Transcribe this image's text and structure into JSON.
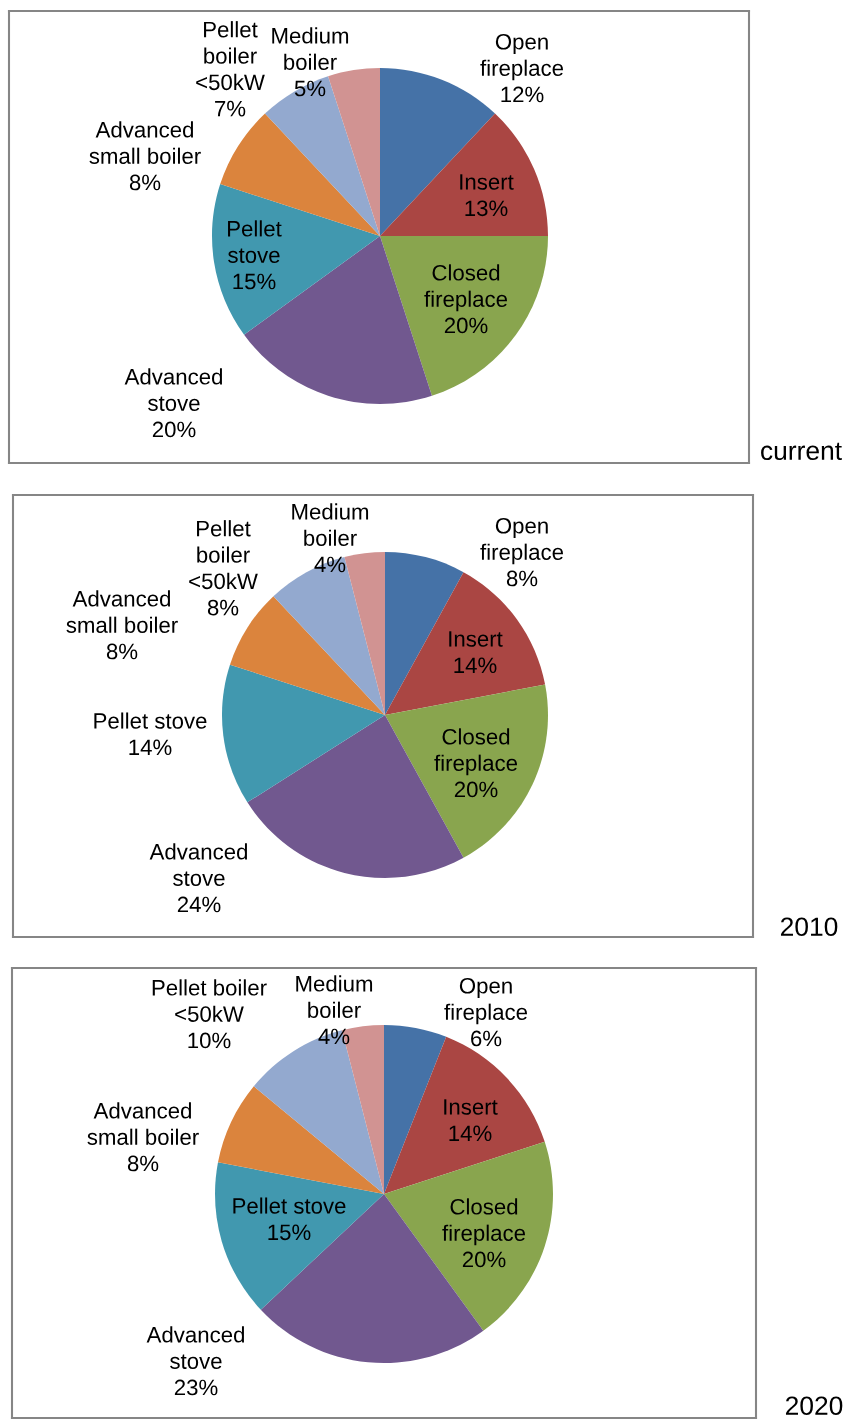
{
  "chart_data": [
    {
      "type": "pie",
      "title": "current",
      "categories": [
        "Open\nfireplace",
        "Insert",
        "Closed\nfireplace",
        "Advanced\nstove",
        "Pellet\nstove",
        "Advanced\nsmall boiler",
        "Pellet\nboiler\n<50kW",
        "Medium\nboiler"
      ],
      "values": [
        12,
        13,
        20,
        20,
        15,
        8,
        7,
        5
      ],
      "value_labels": [
        "12%",
        "13%",
        "20%",
        "20%",
        "15%",
        "8%",
        "7%",
        "5%"
      ],
      "colors": [
        "#4572a7",
        "#aa4643",
        "#89a54e",
        "#71588f",
        "#4198af",
        "#db843d",
        "#93a9cf",
        "#d19392"
      ]
    },
    {
      "type": "pie",
      "title": "2010",
      "categories": [
        "Open\nfireplace",
        "Insert",
        "Closed\nfireplace",
        "Advanced\nstove",
        "Pellet stove",
        "Advanced\nsmall boiler",
        "Pellet\nboiler\n<50kW",
        "Medium\nboiler"
      ],
      "values": [
        8,
        14,
        20,
        24,
        14,
        8,
        8,
        4
      ],
      "value_labels": [
        "8%",
        "14%",
        "20%",
        "24%",
        "14%",
        "8%",
        "8%",
        "4%"
      ],
      "colors": [
        "#4572a7",
        "#aa4643",
        "#89a54e",
        "#71588f",
        "#4198af",
        "#db843d",
        "#93a9cf",
        "#d19392"
      ]
    },
    {
      "type": "pie",
      "title": "2020",
      "categories": [
        "Open\nfireplace",
        "Insert",
        "Closed\nfireplace",
        "Advanced\nstove",
        "Pellet stove",
        "Advanced\nsmall boiler",
        "Pellet boiler\n<50kW",
        "Medium\nboiler"
      ],
      "values": [
        6,
        14,
        20,
        23,
        15,
        8,
        10,
        4
      ],
      "value_labels": [
        "6%",
        "14%",
        "20%",
        "23%",
        "15%",
        "8%",
        "10%",
        "4%"
      ],
      "colors": [
        "#4572a7",
        "#aa4643",
        "#89a54e",
        "#71588f",
        "#4198af",
        "#db843d",
        "#93a9cf",
        "#d19392"
      ]
    }
  ]
}
